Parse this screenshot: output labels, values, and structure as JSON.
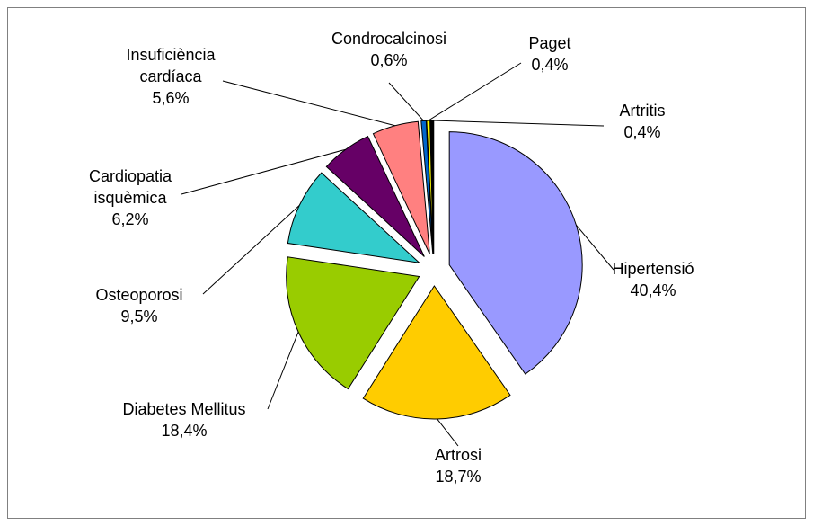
{
  "chart_data": {
    "type": "pie",
    "categories": [
      "Hipertensió",
      "Artrosi",
      "Diabetes Mellitus",
      "Osteoporosi",
      "Cardiopatia\nisquèmica",
      "Insuficiència\ncardíaca",
      "Condrocalcinosi",
      "Paget",
      "Artritis"
    ],
    "values": [
      40.4,
      18.7,
      18.4,
      9.5,
      6.2,
      5.6,
      0.6,
      0.4,
      0.4
    ],
    "value_labels": [
      "40,4%",
      "18,7%",
      "18,4%",
      "9,5%",
      "6,2%",
      "5,6%",
      "0,6%",
      "0,4%",
      "0,4%"
    ],
    "colors": [
      "#9999ff",
      "#ffcc00",
      "#99cc00",
      "#33cccc",
      "#660066",
      "#ff8080",
      "#0066cc",
      "#ffff00",
      "#000000"
    ]
  }
}
